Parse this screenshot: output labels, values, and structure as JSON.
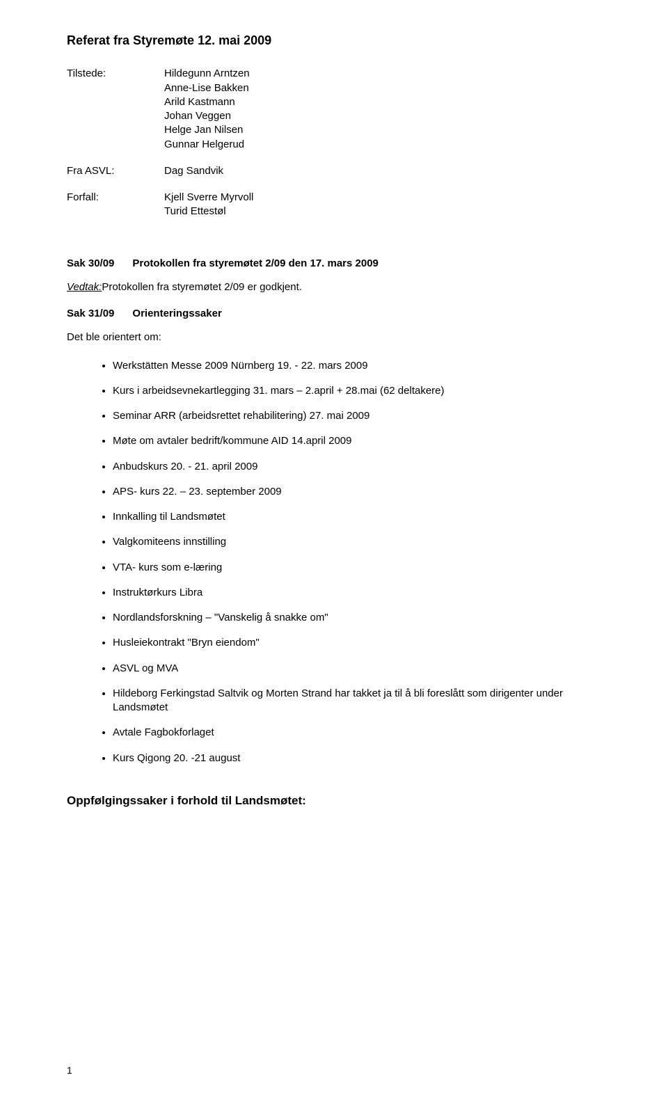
{
  "title": "Referat fra Styremøte 12. mai 2009",
  "meta": [
    {
      "label": "Tilstede:",
      "lines": [
        "Hildegunn Arntzen",
        "Anne-Lise Bakken",
        "Arild Kastmann",
        "Johan Veggen",
        "Helge Jan Nilsen",
        "Gunnar Helgerud"
      ]
    },
    {
      "label": "Fra ASVL:",
      "lines": [
        "Dag Sandvik"
      ]
    },
    {
      "label": "Forfall:",
      "lines": [
        "Kjell Sverre Myrvoll",
        "Turid Ettestøl"
      ]
    }
  ],
  "sak30": {
    "id": "Sak 30/09",
    "title": "Protokollen fra styremøtet 2/09 den 17. mars 2009",
    "vedtak_label": "Vedtak:",
    "vedtak_text": "Protokollen fra styremøtet 2/09 er godkjent."
  },
  "sak31": {
    "id": "Sak 31/09",
    "title": "Orienteringssaker",
    "intro": "Det ble orientert om:",
    "items": [
      "Werkstätten Messe 2009 Nürnberg 19. - 22. mars 2009",
      "Kurs i arbeidsevnekartlegging 31. mars – 2.april + 28.mai (62 deltakere)",
      "Seminar ARR (arbeidsrettet rehabilitering) 27. mai 2009",
      "Møte om avtaler bedrift/kommune AID 14.april 2009",
      "Anbudskurs 20. - 21. april 2009",
      "APS- kurs 22. – 23. september 2009",
      "Innkalling til Landsmøtet",
      "Valgkomiteens innstilling",
      "VTA- kurs som e-læring",
      "Instruktørkurs Libra",
      "Nordlandsforskning – \"Vanskelig å snakke om\"",
      "Husleiekontrakt \"Bryn eiendom\"",
      "ASVL og MVA",
      "Hildeborg Ferkingstad Saltvik og Morten Strand har takket ja til å bli foreslått som dirigenter under Landsmøtet",
      "Avtale Fagbokforlaget",
      "Kurs Qigong 20. -21 august"
    ]
  },
  "followup_heading": "Oppfølgingssaker i forhold til Landsmøtet:",
  "page_number": "1",
  "colors": {
    "text": "#000000",
    "background": "#ffffff"
  },
  "fonts": {
    "family": "Arial",
    "title_size_pt": 14,
    "body_size_pt": 11
  }
}
